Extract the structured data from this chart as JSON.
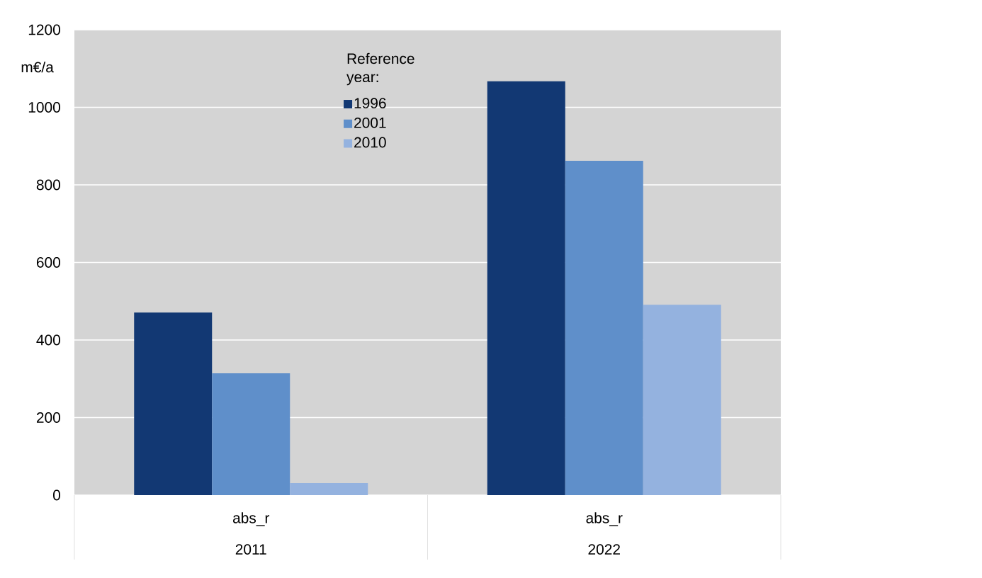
{
  "chart_data": {
    "type": "bar",
    "ylabel": "m€/a",
    "legend_title": "Reference year:",
    "categories": [
      "2011",
      "2022"
    ],
    "series": [
      {
        "name": "1996",
        "color": "#123873",
        "values": [
          471,
          1067
        ]
      },
      {
        "name": "2001",
        "color": "#5f8fca",
        "values": [
          314,
          862
        ]
      },
      {
        "name": "2010",
        "color": "#94b2df",
        "values": [
          31,
          491
        ]
      }
    ],
    "annotations": [
      "abs_r",
      "abs_r"
    ],
    "ylim": [
      0,
      1200
    ],
    "yticks": [
      0,
      200,
      400,
      600,
      800,
      1000,
      1200
    ],
    "grid": "y",
    "legend": "top"
  }
}
